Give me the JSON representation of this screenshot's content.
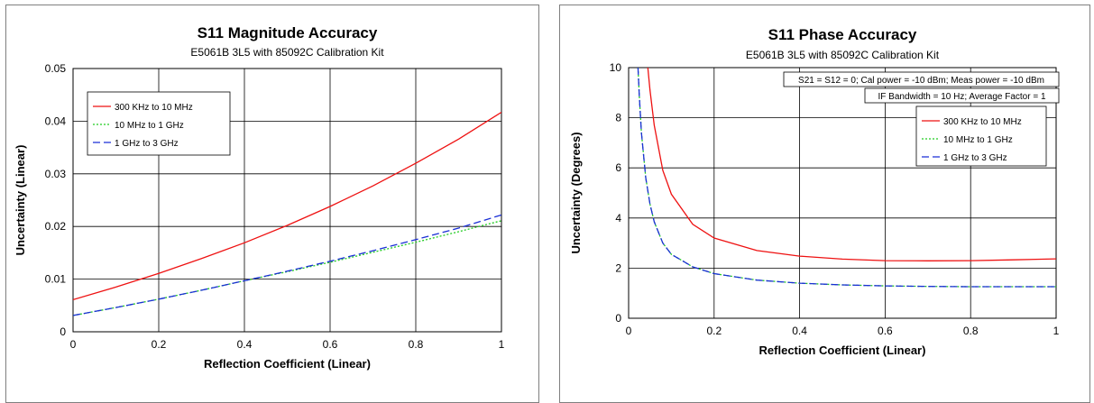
{
  "chart_data": [
    {
      "id": "mag",
      "type": "line",
      "title": "S11 Magnitude Accuracy",
      "subtitle": "E5061B 3L5 with 85092C Calibration Kit",
      "xlabel": "Reflection Coefficient (Linear)",
      "ylabel": "Uncertainty (Linear)",
      "xlim": [
        0,
        1
      ],
      "ylim": [
        0,
        0.05
      ],
      "xticks": [
        0,
        0.2,
        0.4,
        0.6,
        0.8,
        1
      ],
      "xtick_labels": [
        "0",
        "0.2",
        "0.4",
        "0.6",
        "0.8",
        "1"
      ],
      "yticks": [
        0,
        0.01,
        0.02,
        0.03,
        0.04,
        0.05
      ],
      "ytick_labels": [
        "0",
        "0.01",
        "0.02",
        "0.03",
        "0.04",
        "0.05"
      ],
      "grid": true,
      "legend_position": "top-left",
      "notes": [],
      "series": [
        {
          "name": "300 KHz to 10 MHz",
          "color": "#ee1111",
          "dash": "solid",
          "x": [
            0,
            0.1,
            0.2,
            0.3,
            0.4,
            0.5,
            0.6,
            0.7,
            0.8,
            0.9,
            1
          ],
          "y": [
            0.0061,
            0.0085,
            0.0111,
            0.0139,
            0.0169,
            0.0202,
            0.0238,
            0.0277,
            0.032,
            0.0366,
            0.0417
          ]
        },
        {
          "name": "10 MHz to 1 GHz",
          "color": "#22cc22",
          "dash": "dotted",
          "x": [
            0,
            0.1,
            0.2,
            0.3,
            0.4,
            0.5,
            0.6,
            0.7,
            0.8,
            0.9,
            1
          ],
          "y": [
            0.0031,
            0.0046,
            0.0062,
            0.0079,
            0.0097,
            0.0114,
            0.0132,
            0.0151,
            0.017,
            0.019,
            0.0211
          ]
        },
        {
          "name": "1 GHz to 3 GHz",
          "color": "#1a2fd6",
          "dash": "dashed",
          "x": [
            0,
            0.1,
            0.2,
            0.3,
            0.4,
            0.5,
            0.6,
            0.7,
            0.8,
            0.9,
            1
          ],
          "y": [
            0.0031,
            0.0046,
            0.0062,
            0.0079,
            0.0097,
            0.0115,
            0.0134,
            0.0154,
            0.0175,
            0.0197,
            0.0222
          ]
        }
      ]
    },
    {
      "id": "phase",
      "type": "line",
      "title": "S11 Phase Accuracy",
      "subtitle": "E5061B 3L5 with 85092C Calibration Kit",
      "xlabel": "Reflection Coefficient (Linear)",
      "ylabel": "Uncertainty (Degrees)",
      "xlim": [
        0,
        1
      ],
      "ylim": [
        0,
        10
      ],
      "xticks": [
        0,
        0.2,
        0.4,
        0.6,
        0.8,
        1
      ],
      "xtick_labels": [
        "0",
        "0.2",
        "0.4",
        "0.6",
        "0.8",
        "1"
      ],
      "yticks": [
        0,
        2,
        4,
        6,
        8,
        10
      ],
      "ytick_labels": [
        "0",
        "2",
        "4",
        "6",
        "8",
        "10"
      ],
      "grid": true,
      "legend_position": "top-right",
      "notes": [
        "S21 = S12 = 0; Cal power = -10 dBm; Meas power = -10 dBm",
        "IF Bandwidth  = 10 Hz; Average Factor = 1"
      ],
      "series": [
        {
          "name": "300 KHz to 10 MHz",
          "color": "#ee1111",
          "dash": "solid",
          "x": [
            0.045,
            0.05,
            0.06,
            0.08,
            0.1,
            0.15,
            0.2,
            0.3,
            0.4,
            0.5,
            0.6,
            0.7,
            0.8,
            0.9,
            1
          ],
          "y": [
            10,
            9.1,
            7.7,
            5.9,
            4.95,
            3.75,
            3.2,
            2.7,
            2.48,
            2.36,
            2.3,
            2.29,
            2.3,
            2.33,
            2.37
          ]
        },
        {
          "name": "10 MHz to 1 GHz",
          "color": "#22cc22",
          "dash": "dotted",
          "x": [
            0.022,
            0.025,
            0.03,
            0.04,
            0.05,
            0.06,
            0.08,
            0.1,
            0.15,
            0.2,
            0.3,
            0.4,
            0.5,
            0.6,
            0.7,
            0.8,
            0.9,
            1
          ],
          "y": [
            10,
            8.9,
            7.4,
            5.6,
            4.55,
            3.85,
            3.0,
            2.55,
            2.05,
            1.78,
            1.52,
            1.4,
            1.33,
            1.29,
            1.27,
            1.26,
            1.26,
            1.26
          ]
        },
        {
          "name": "1 GHz to 3 GHz",
          "color": "#1a2fd6",
          "dash": "dashed",
          "x": [
            0.022,
            0.025,
            0.03,
            0.04,
            0.05,
            0.06,
            0.08,
            0.1,
            0.15,
            0.2,
            0.3,
            0.4,
            0.5,
            0.6,
            0.7,
            0.8,
            0.9,
            1
          ],
          "y": [
            10,
            8.9,
            7.4,
            5.6,
            4.55,
            3.85,
            3.0,
            2.55,
            2.05,
            1.78,
            1.52,
            1.4,
            1.33,
            1.29,
            1.27,
            1.26,
            1.26,
            1.26
          ]
        }
      ]
    }
  ]
}
